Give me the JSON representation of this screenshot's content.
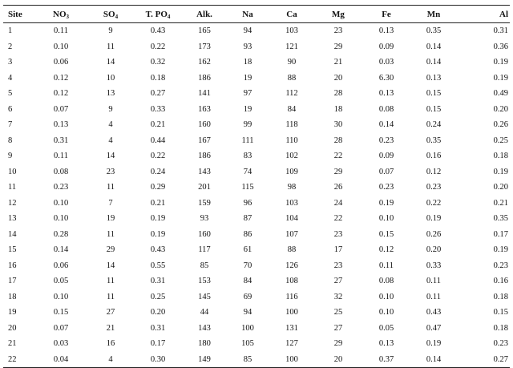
{
  "table": {
    "headers": [
      {
        "base": "Site",
        "sub": ""
      },
      {
        "base": "NO",
        "sub": "3"
      },
      {
        "base": "SO",
        "sub": "4"
      },
      {
        "base": "T. PO",
        "sub": "4"
      },
      {
        "base": "Alk.",
        "sub": ""
      },
      {
        "base": "Na",
        "sub": ""
      },
      {
        "base": "Ca",
        "sub": ""
      },
      {
        "base": "Mg",
        "sub": ""
      },
      {
        "base": "Fe",
        "sub": ""
      },
      {
        "base": "Mn",
        "sub": ""
      },
      {
        "base": "Al",
        "sub": ""
      }
    ],
    "rows": [
      [
        "1",
        "0.11",
        "9",
        "0.43",
        "165",
        "94",
        "103",
        "23",
        "0.13",
        "0.35",
        "0.31"
      ],
      [
        "2",
        "0.10",
        "11",
        "0.22",
        "173",
        "93",
        "121",
        "29",
        "0.09",
        "0.14",
        "0.36"
      ],
      [
        "3",
        "0.06",
        "14",
        "0.32",
        "162",
        "18",
        "90",
        "21",
        "0.03",
        "0.14",
        "0.19"
      ],
      [
        "4",
        "0.12",
        "10",
        "0.18",
        "186",
        "19",
        "88",
        "20",
        "6.30",
        "0.13",
        "0.19"
      ],
      [
        "5",
        "0.12",
        "13",
        "0.27",
        "141",
        "97",
        "112",
        "28",
        "0.13",
        "0.15",
        "0.49"
      ],
      [
        "6",
        "0.07",
        "9",
        "0.33",
        "163",
        "19",
        "84",
        "18",
        "0.08",
        "0.15",
        "0.20"
      ],
      [
        "7",
        "0.13",
        "4",
        "0.21",
        "160",
        "99",
        "118",
        "30",
        "0.14",
        "0.24",
        "0.26"
      ],
      [
        "8",
        "0.31",
        "4",
        "0.44",
        "167",
        "111",
        "110",
        "28",
        "0.23",
        "0.35",
        "0.25"
      ],
      [
        "9",
        "0.11",
        "14",
        "0.22",
        "186",
        "83",
        "102",
        "22",
        "0.09",
        "0.16",
        "0.18"
      ],
      [
        "10",
        "0.08",
        "23",
        "0.24",
        "143",
        "74",
        "109",
        "29",
        "0.07",
        "0.12",
        "0.19"
      ],
      [
        "11",
        "0.23",
        "11",
        "0.29",
        "201",
        "115",
        "98",
        "26",
        "0.23",
        "0.23",
        "0.20"
      ],
      [
        "12",
        "0.10",
        "7",
        "0.21",
        "159",
        "96",
        "103",
        "24",
        "0.19",
        "0.22",
        "0.21"
      ],
      [
        "13",
        "0.10",
        "19",
        "0.19",
        "93",
        "87",
        "104",
        "22",
        "0.10",
        "0.19",
        "0.35"
      ],
      [
        "14",
        "0.28",
        "11",
        "0.19",
        "160",
        "86",
        "107",
        "23",
        "0.15",
        "0.26",
        "0.17"
      ],
      [
        "15",
        "0.14",
        "29",
        "0.43",
        "117",
        "61",
        "88",
        "17",
        "0.12",
        "0.20",
        "0.19"
      ],
      [
        "16",
        "0.06",
        "14",
        "0.55",
        "85",
        "70",
        "126",
        "23",
        "0.11",
        "0.33",
        "0.23"
      ],
      [
        "17",
        "0.05",
        "11",
        "0.31",
        "153",
        "84",
        "108",
        "27",
        "0.08",
        "0.11",
        "0.16"
      ],
      [
        "18",
        "0.10",
        "11",
        "0.25",
        "145",
        "69",
        "116",
        "32",
        "0.10",
        "0.11",
        "0.18"
      ],
      [
        "19",
        "0.15",
        "27",
        "0.20",
        "44",
        "94",
        "100",
        "25",
        "0.10",
        "0.43",
        "0.15"
      ],
      [
        "20",
        "0.07",
        "21",
        "0.31",
        "143",
        "100",
        "131",
        "27",
        "0.05",
        "0.47",
        "0.18"
      ],
      [
        "21",
        "0.03",
        "16",
        "0.17",
        "180",
        "105",
        "127",
        "29",
        "0.13",
        "0.19",
        "0.23"
      ],
      [
        "22",
        "0.04",
        "4",
        "0.30",
        "149",
        "85",
        "100",
        "20",
        "0.37",
        "0.14",
        "0.27"
      ]
    ]
  }
}
